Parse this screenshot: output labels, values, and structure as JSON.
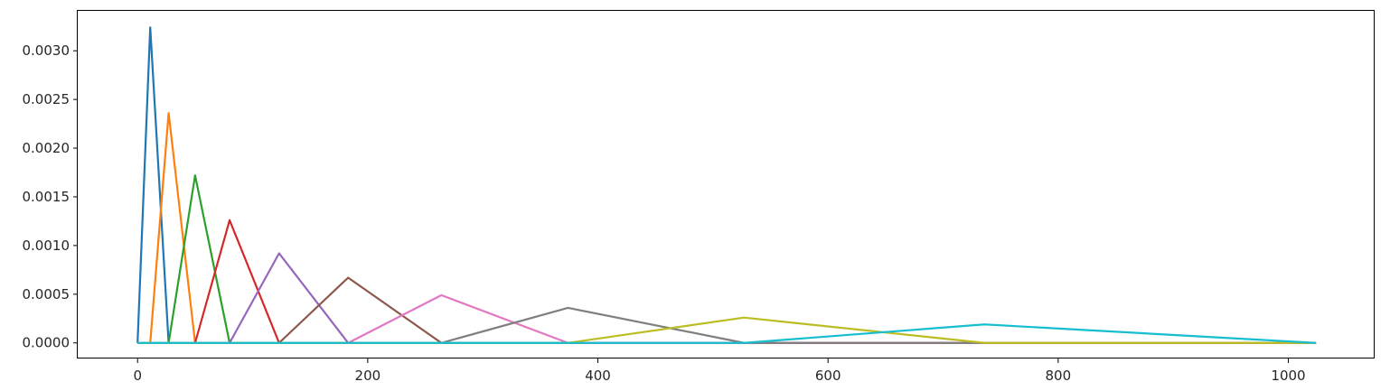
{
  "chart_data": {
    "type": "line",
    "title": "",
    "xlabel": "",
    "ylabel": "",
    "xlim": [
      -52,
      1075
    ],
    "ylim": [
      -0.00016,
      0.00341
    ],
    "grid": false,
    "legend": "none",
    "x_ticks": [
      0,
      200,
      400,
      600,
      800,
      1000
    ],
    "x_tick_labels": [
      "0",
      "200",
      "400",
      "600",
      "800",
      "1000"
    ],
    "y_ticks": [
      0,
      0.0005,
      0.001,
      0.0015,
      0.002,
      0.0025,
      0.003
    ],
    "y_tick_labels": [
      "0.0000",
      "0.0005",
      "0.0010",
      "0.0015",
      "0.0020",
      "0.0025",
      "0.0030"
    ],
    "series": [
      {
        "color": "#1f77b4",
        "x": [
          0,
          11,
          27,
          1024
        ],
        "y": [
          0,
          0.00324,
          0,
          0
        ]
      },
      {
        "color": "#ff7f0e",
        "x": [
          0,
          11,
          27,
          50,
          1024
        ],
        "y": [
          0,
          0,
          0.00236,
          0,
          0
        ]
      },
      {
        "color": "#2ca02c",
        "x": [
          0,
          27,
          50,
          80,
          1024
        ],
        "y": [
          0,
          0,
          0.00172,
          0,
          0
        ]
      },
      {
        "color": "#d62728",
        "x": [
          0,
          50,
          80,
          123,
          1024
        ],
        "y": [
          0,
          0,
          0.00126,
          0,
          0
        ]
      },
      {
        "color": "#9467bd",
        "x": [
          0,
          80,
          123,
          183,
          1024
        ],
        "y": [
          0,
          0,
          0.00092,
          0,
          0
        ]
      },
      {
        "color": "#8c564b",
        "x": [
          0,
          123,
          183,
          264,
          1024
        ],
        "y": [
          0,
          0,
          0.00067,
          0,
          0
        ]
      },
      {
        "color": "#e377c2",
        "x": [
          0,
          183,
          264,
          374,
          1024
        ],
        "y": [
          0,
          0,
          0.00049,
          0,
          0
        ]
      },
      {
        "color": "#7f7f7f",
        "x": [
          0,
          264,
          374,
          527,
          1024
        ],
        "y": [
          0,
          0,
          0.00036,
          0,
          0
        ]
      },
      {
        "color": "#bcbd22",
        "x": [
          0,
          374,
          527,
          736,
          1024
        ],
        "y": [
          0,
          0,
          0.00026,
          0,
          0
        ]
      },
      {
        "color": "#17becf",
        "x": [
          0,
          527,
          736,
          1024
        ],
        "y": [
          0,
          0,
          0.00019,
          0
        ]
      }
    ]
  }
}
